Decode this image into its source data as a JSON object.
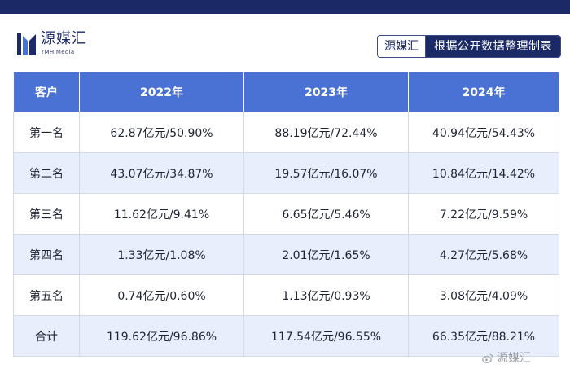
{
  "header": {
    "logo_cn": "源媒汇",
    "logo_en": "YMH.Media",
    "source_brand": "源媒汇",
    "source_text": "根据公开数据整理制表"
  },
  "table": {
    "columns": [
      "客户",
      "2022年",
      "2023年",
      "2024年"
    ],
    "rows": [
      {
        "rank": "第一名",
        "y2022": "62.87亿元/50.90%",
        "y2023": "88.19亿元/72.44%",
        "y2024": "40.94亿元/54.43%"
      },
      {
        "rank": "第二名",
        "y2022": "43.07亿元/34.87%",
        "y2023": "19.57亿元/16.07%",
        "y2024": "10.84亿元/14.42%"
      },
      {
        "rank": "第三名",
        "y2022": "11.62亿元/9.41%",
        "y2023": "6.65亿元/5.46%",
        "y2024": "7.22亿元/9.59%"
      },
      {
        "rank": "第四名",
        "y2022": "1.33亿元/1.08%",
        "y2023": "2.01亿元/1.65%",
        "y2024": "4.27亿元/5.68%"
      },
      {
        "rank": "第五名",
        "y2022": "0.74亿元/0.60%",
        "y2023": "1.13亿元/0.93%",
        "y2024": "3.08亿元/4.09%"
      },
      {
        "rank": "合计",
        "y2022": "119.62亿元/96.86%",
        "y2023": "117.54亿元/96.55%",
        "y2024": "66.35亿元/88.21%"
      }
    ]
  },
  "watermark": {
    "text": "源媒汇"
  },
  "colors": {
    "header_band": "#1b2a66",
    "table_header": "#4a72d4",
    "row_stripe": "#e8eefb"
  }
}
